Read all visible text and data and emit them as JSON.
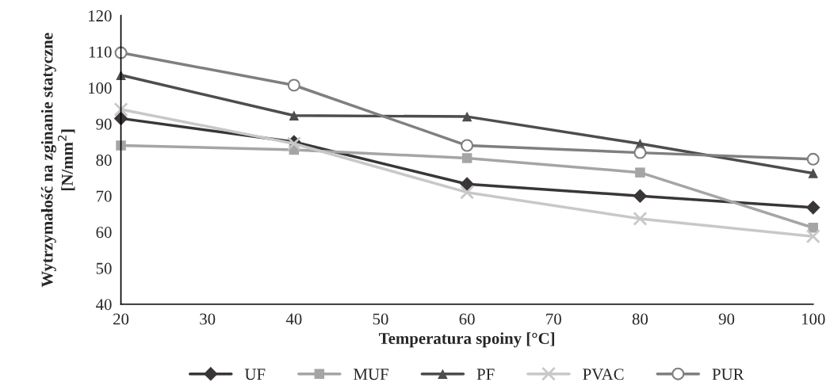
{
  "chart_data": {
    "type": "line",
    "xlabel": "Temperatura spoiny [°C]",
    "ylabel": "Wytrzymałość na zginanie statyczne\n[N/mm$^{2}$]",
    "x": [
      20,
      40,
      60,
      80,
      100
    ],
    "xlim": [
      20,
      100
    ],
    "xticks": [
      20,
      30,
      40,
      50,
      60,
      70,
      80,
      90,
      100
    ],
    "ylim": [
      40,
      120
    ],
    "yticks": [
      40,
      50,
      60,
      70,
      80,
      90,
      100,
      110,
      120
    ],
    "grid": false,
    "legend": "bottom",
    "series": [
      {
        "name": "UF",
        "color": "#3a3638",
        "marker": "diamond",
        "values": [
          91.5,
          85,
          73.3,
          70,
          66.8
        ]
      },
      {
        "name": "MUF",
        "color": "#a5a5a5",
        "marker": "square",
        "values": [
          84,
          82.8,
          80.5,
          76.5,
          61.2
        ]
      },
      {
        "name": "PF",
        "color": "#4d4d4d",
        "marker": "triangle",
        "values": [
          103.5,
          92.3,
          92,
          84.5,
          76.3
        ]
      },
      {
        "name": "PVAC",
        "color": "#c8c8c8",
        "marker": "cross",
        "values": [
          94,
          84.5,
          71,
          63.7,
          58.8
        ]
      },
      {
        "name": "PUR",
        "color": "#7f7f7f",
        "marker": "circle",
        "values": [
          109.7,
          100.7,
          84,
          82,
          80.2
        ]
      }
    ]
  }
}
